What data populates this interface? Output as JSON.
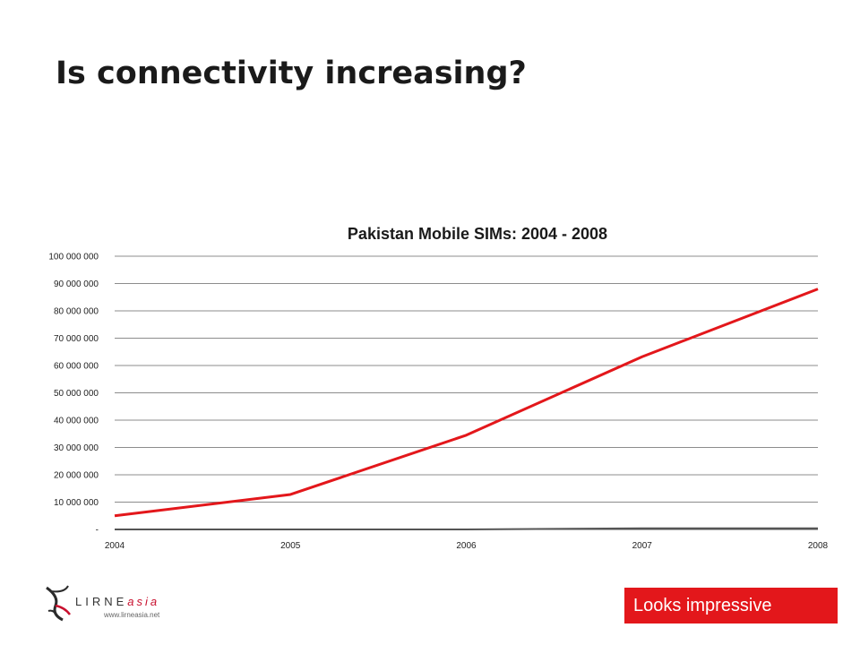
{
  "slide": {
    "title": "Is connectivity increasing?",
    "callout": "Looks impressive"
  },
  "logo": {
    "name_main": "LIRNE",
    "name_accent": "asia",
    "url": "www.lirneasia.net"
  },
  "colors": {
    "series_main": "#e3171b",
    "series_secondary": "#555555",
    "callout_bg": "#e3171b",
    "gridline": "#8c8c8c"
  },
  "chart_data": {
    "type": "line",
    "title": "Pakistan Mobile SIMs: 2004 - 2008",
    "xlabel": "",
    "ylabel": "",
    "x": [
      "2004",
      "2005",
      "2006",
      "2007",
      "2008"
    ],
    "ylim": [
      0,
      100000000
    ],
    "y_ticks": [
      {
        "value": 0,
        "label": "-"
      },
      {
        "value": 10000000,
        "label": "10 000 000"
      },
      {
        "value": 20000000,
        "label": "20 000 000"
      },
      {
        "value": 30000000,
        "label": "30 000 000"
      },
      {
        "value": 40000000,
        "label": "40 000 000"
      },
      {
        "value": 50000000,
        "label": "50 000 000"
      },
      {
        "value": 60000000,
        "label": "60 000 000"
      },
      {
        "value": 70000000,
        "label": "70 000 000"
      },
      {
        "value": 80000000,
        "label": "80 000 000"
      },
      {
        "value": 90000000,
        "label": "90 000 000"
      },
      {
        "value": 100000000,
        "label": "100 000 000"
      }
    ],
    "grid": true,
    "legend": "none",
    "series": [
      {
        "color": "#e3171b",
        "values": [
          5000000,
          12800000,
          34500000,
          63200000,
          88000000
        ]
      },
      {
        "color": "#555555",
        "values": [
          0,
          0,
          0,
          400000,
          400000
        ]
      }
    ]
  }
}
